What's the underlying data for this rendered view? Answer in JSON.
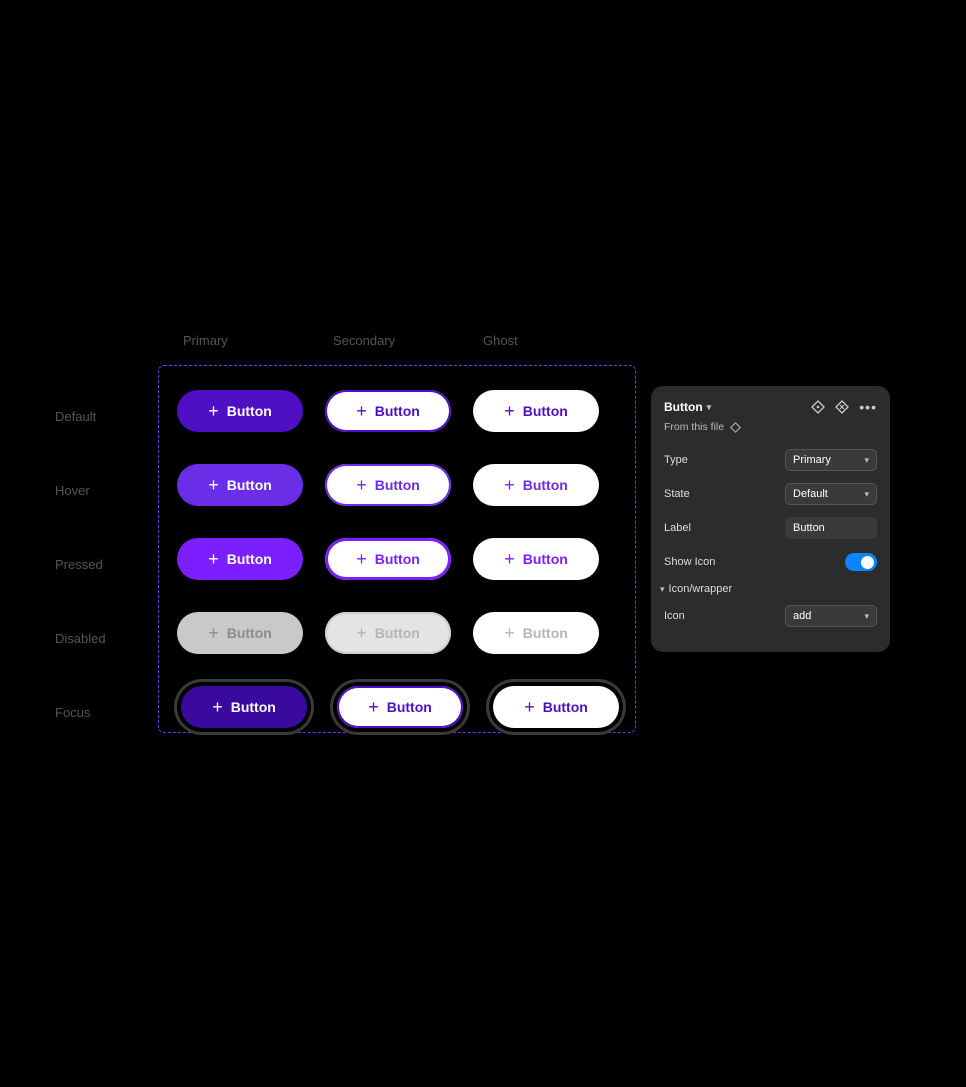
{
  "columns": [
    "Primary",
    "Secondary",
    "Ghost"
  ],
  "rows": [
    "Default",
    "Hover",
    "Pressed",
    "Disabled",
    "Focus"
  ],
  "button_label": "Button",
  "icon_name": "plus-icon",
  "colors": {
    "frame_border": "#6a3de8",
    "panel_bg": "#2c2c2c",
    "toggle_on": "#0a84ff",
    "disabled_text": "#b5b5b5",
    "disabled_text_primary": "#8c8c8c",
    "focus_ring": "#3a3a3a"
  },
  "variants": {
    "primary": {
      "default": {
        "bg": "#4f0fc4",
        "text": "#ffffff",
        "border": "transparent",
        "icon": "#ffffff"
      },
      "hover": {
        "bg": "#6a2de8",
        "text": "#ffffff",
        "border": "transparent",
        "icon": "#ffffff"
      },
      "pressed": {
        "bg": "#7b1fff",
        "text": "#ffffff",
        "border": "transparent",
        "icon": "#ffffff"
      },
      "disabled": {
        "bg": "#c9c9c9",
        "text": "#8c8c8c",
        "border": "transparent",
        "icon": "#8c8c8c"
      },
      "focus": {
        "bg": "#3a0a9e",
        "text": "#ffffff",
        "border": "transparent",
        "icon": "#ffffff",
        "ring": "#3a3a3a"
      }
    },
    "secondary": {
      "default": {
        "bg": "#ffffff",
        "text": "#4f0fc4",
        "border": "#4f0fc4",
        "icon": "#4f0fc4",
        "border_width": 2
      },
      "hover": {
        "bg": "#ffffff",
        "text": "#6a2de8",
        "border": "#6a2de8",
        "icon": "#6a2de8",
        "border_width": 2
      },
      "pressed": {
        "bg": "#ffffff",
        "text": "#7b1fff",
        "border": "#7b1fff",
        "icon": "#7b1fff",
        "border_width": 3
      },
      "disabled": {
        "bg": "#e4e4e4",
        "text": "#b5b5b5",
        "border": "#cfcfcf",
        "icon": "#b5b5b5",
        "border_width": 2
      },
      "focus": {
        "bg": "#ffffff",
        "text": "#4f0fc4",
        "border": "#4f0fc4",
        "icon": "#4f0fc4",
        "border_width": 2,
        "ring": "#3a3a3a"
      }
    },
    "ghost": {
      "default": {
        "bg": "#ffffff",
        "text": "#4f0fc4",
        "border": "transparent",
        "icon": "#4f0fc4"
      },
      "hover": {
        "bg": "#ffffff",
        "text": "#6a2de8",
        "border": "transparent",
        "icon": "#6a2de8"
      },
      "pressed": {
        "bg": "#ffffff",
        "text": "#7b1fff",
        "border": "transparent",
        "icon": "#7b1fff"
      },
      "disabled": {
        "bg": "#ffffff",
        "text": "#b5b5b5",
        "border": "transparent",
        "icon": "#b5b5b5"
      },
      "focus": {
        "bg": "#ffffff",
        "text": "#4f0fc4",
        "border": "transparent",
        "icon": "#4f0fc4",
        "ring": "#3a3a3a"
      }
    }
  },
  "panel": {
    "title": "Button",
    "subtitle": "From this file",
    "props": {
      "type": {
        "label": "Type",
        "value": "Primary"
      },
      "state": {
        "label": "State",
        "value": "Default"
      },
      "label": {
        "label": "Label",
        "value": "Button"
      },
      "show_icon": {
        "label": "Show Icon",
        "value": true
      }
    },
    "section": "Icon/wrapper",
    "icon_prop": {
      "label": "Icon",
      "value": "add"
    }
  }
}
